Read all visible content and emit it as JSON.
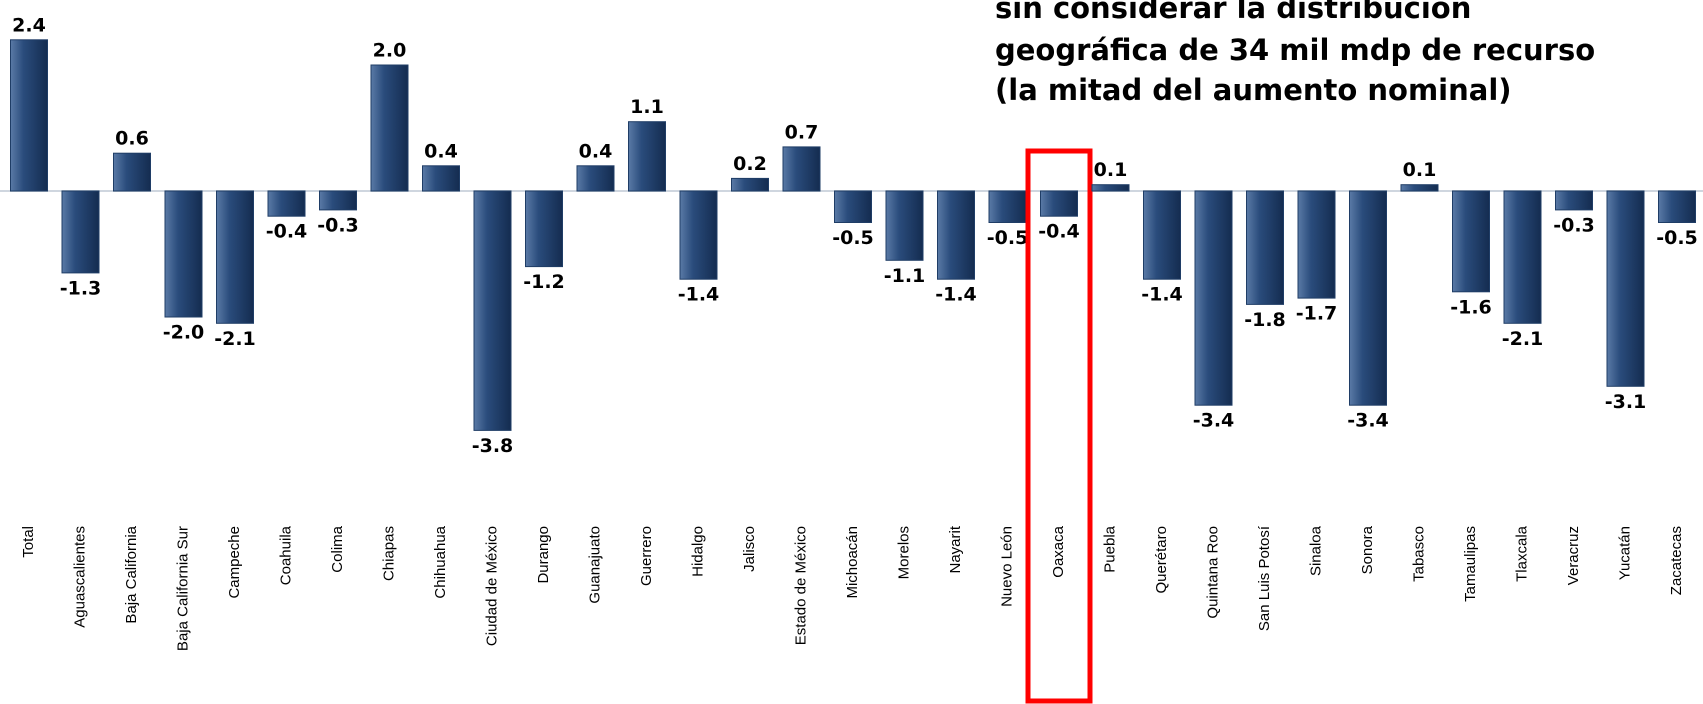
{
  "chart_data": {
    "type": "bar",
    "title_lines": [
      "sin considerar la distribución",
      "geográfica de 34 mil mdp de recurso",
      "(la mitad del aumento nominal)"
    ],
    "categories": [
      "Total",
      "Aguascalientes",
      "Baja California",
      "Baja California Sur",
      "Campeche",
      "Coahuila",
      "Colima",
      "Chiapas",
      "Chihuahua",
      "Ciudad de México",
      "Durango",
      "Guanajuato",
      "Guerrero",
      "Hidalgo",
      "Jalisco",
      "Estado de México",
      "Michoacán",
      "Morelos",
      "Nayarit",
      "Nuevo León",
      "Oaxaca",
      "Puebla",
      "Querétaro",
      "Quintana Roo",
      "San Luis Potosí",
      "Sinaloa",
      "Sonora",
      "Tabasco",
      "Tamaulipas",
      "Tlaxcala",
      "Veracruz",
      "Yucatán",
      "Zacatecas"
    ],
    "values": [
      2.4,
      -1.3,
      0.6,
      -2.0,
      -2.1,
      -0.4,
      -0.3,
      2.0,
      0.4,
      -3.8,
      -1.2,
      0.4,
      1.1,
      -1.4,
      0.2,
      0.7,
      -0.5,
      -1.1,
      -1.4,
      -0.5,
      -0.4,
      0.1,
      -1.4,
      -3.4,
      -1.8,
      -1.7,
      -3.4,
      0.1,
      -1.6,
      -2.1,
      -0.3,
      -3.1,
      -0.5
    ],
    "value_labels": [
      "2.4",
      "-1.3",
      "0.6",
      "-2.0",
      "-2.1",
      "-0.4",
      "-0.3",
      "2.0",
      "0.4",
      "-3.8",
      "-1.2",
      "0.4",
      "1.1",
      "-1.4",
      "0.2",
      "0.7",
      "-0.5",
      "-1.1",
      "-1.4",
      "-0.5",
      "-0.4",
      "0.1",
      "-1.4",
      "-3.4",
      "-1.8",
      "-1.7",
      "-3.4",
      "0.1",
      "-1.6",
      "-2.1",
      "-0.3",
      "-3.1",
      "-0.5"
    ],
    "color": "#1f3d66",
    "highlight": "Oaxaca"
  }
}
